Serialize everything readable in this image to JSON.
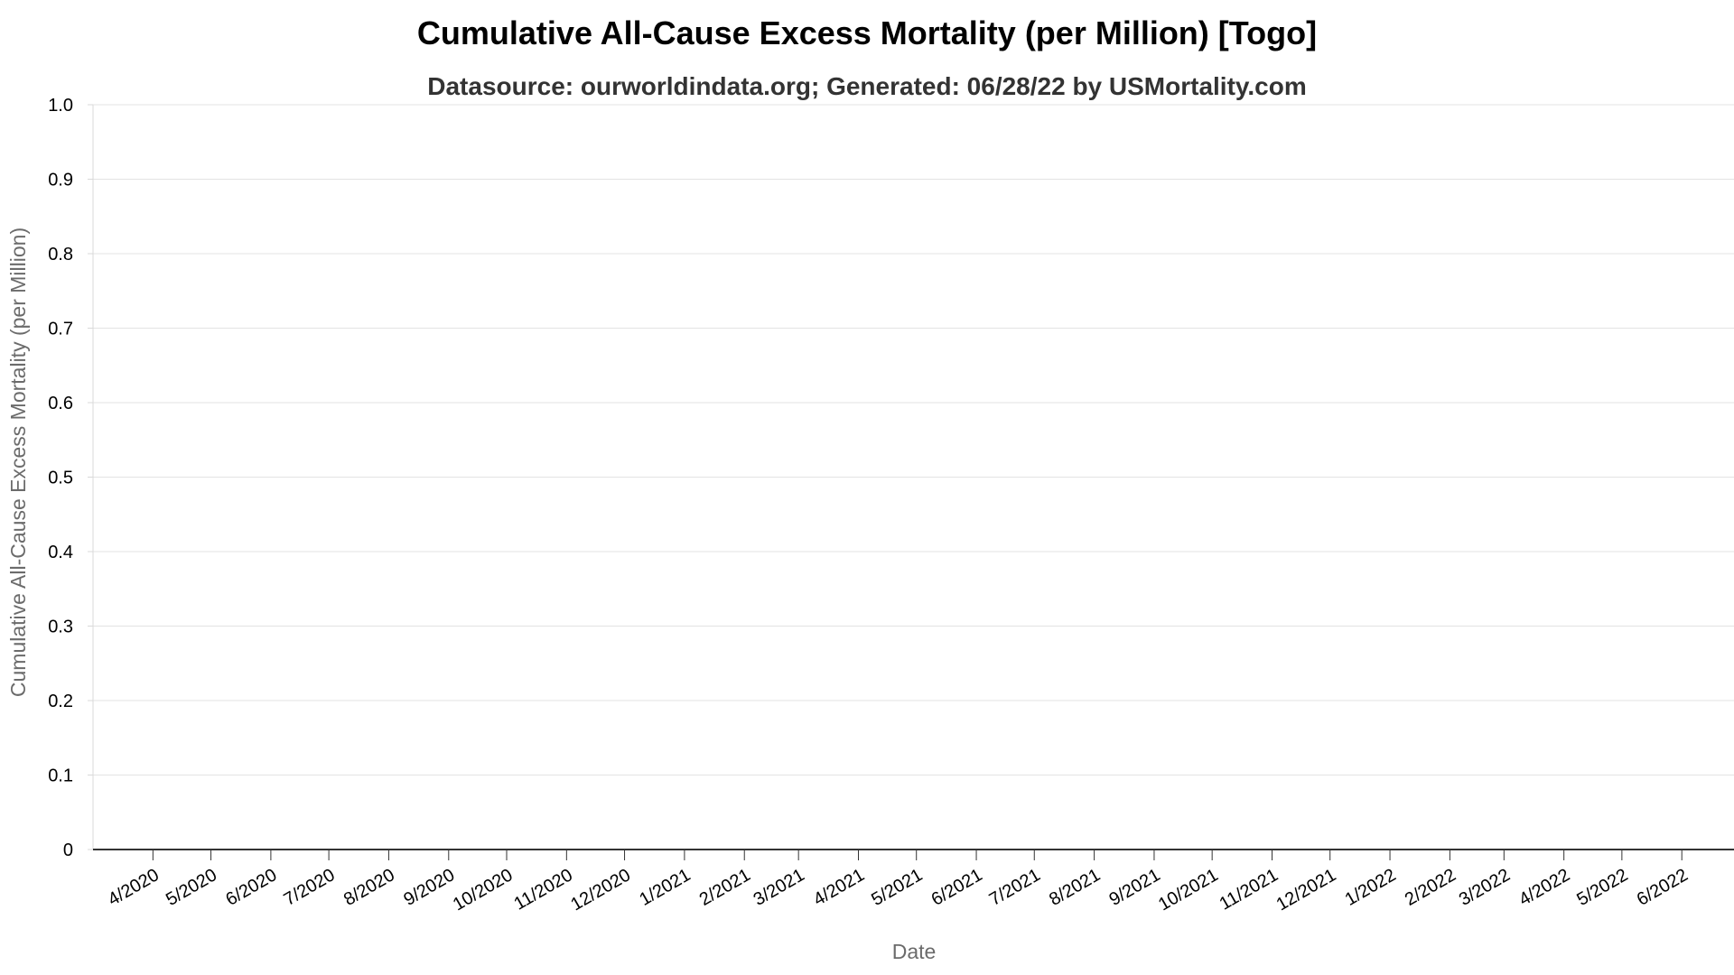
{
  "chart_data": {
    "type": "line",
    "title": "Cumulative All-Cause Excess Mortality (per Million) [Togo]",
    "subtitle": "Datasource: ourworldindata.org; Generated: 06/28/22 by USMortality.com",
    "xlabel": "Date",
    "ylabel": "Cumulative All-Cause Excess Mortality (per Million)",
    "ylim": [
      0,
      1.0
    ],
    "y_ticks": [
      "0",
      "0.1",
      "0.2",
      "0.3",
      "0.4",
      "0.5",
      "0.6",
      "0.7",
      "0.8",
      "0.9",
      "1.0"
    ],
    "x_ticks": [
      "4/2020",
      "5/2020",
      "6/2020",
      "7/2020",
      "8/2020",
      "9/2020",
      "10/2020",
      "11/2020",
      "12/2020",
      "1/2021",
      "2/2021",
      "3/2021",
      "4/2021",
      "5/2021",
      "6/2021",
      "7/2021",
      "8/2021",
      "9/2021",
      "10/2021",
      "11/2021",
      "12/2021",
      "1/2022",
      "2/2022",
      "3/2022",
      "4/2022",
      "5/2022",
      "6/2022"
    ],
    "x_range": [
      "2020-03-01",
      "2022-06-28"
    ],
    "series": [],
    "grid": true
  }
}
